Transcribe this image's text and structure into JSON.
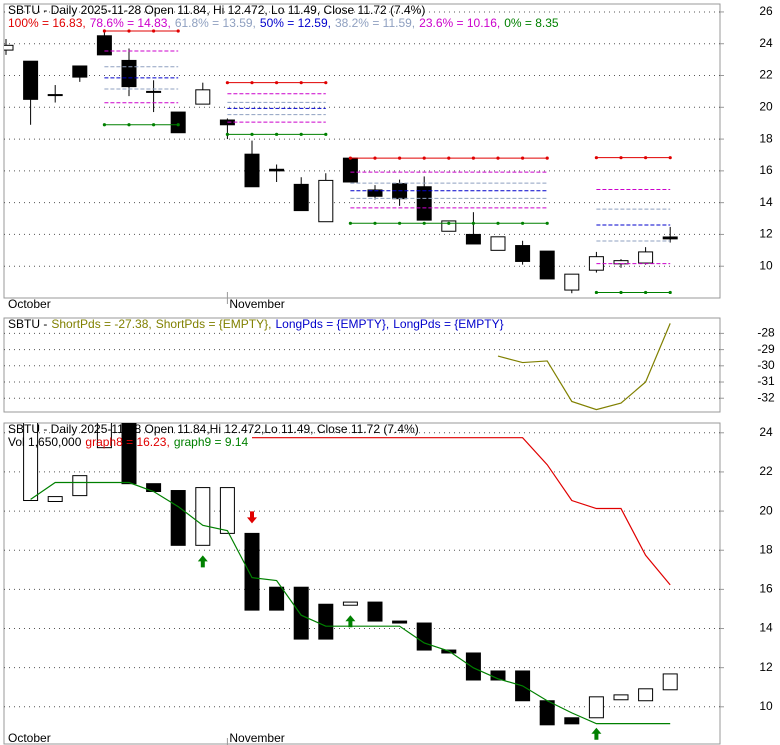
{
  "chart_data": [
    {
      "type": "candlestick",
      "title_lines": [
        [
          {
            "text": "SBTU - Daily 2025-11-28 Open 11.84, Hi 12.472, Lo 11.49, Close 11.72 (7.4%)",
            "color": "#000000"
          }
        ],
        [
          {
            "text": "100% = 16.83,",
            "color": "#e00000"
          },
          {
            "text": "78.6% = 14.83,",
            "color": "#cc00cc"
          },
          {
            "text": "61.8% = 13.59,",
            "color": "#8fa0c0"
          },
          {
            "text": "50% = 12.59,",
            "color": "#0000cc"
          },
          {
            "text": "38.2% = 11.59,",
            "color": "#8fa0c0"
          },
          {
            "text": "23.6% = 10.16,",
            "color": "#cc00cc"
          },
          {
            "text": "0% = 8.35",
            "color": "#008000"
          }
        ]
      ],
      "categories": [
        "October",
        null,
        null,
        null,
        null,
        null,
        null,
        null,
        null,
        "November",
        null,
        null,
        null,
        null,
        null,
        null,
        null,
        null,
        null,
        null,
        null,
        null,
        null,
        null,
        null,
        null,
        null,
        null
      ],
      "open": [
        23.6,
        22.9,
        20.8,
        22.6,
        24.5,
        22.95,
        21.0,
        19.7,
        20.2,
        19.2,
        17.05,
        16.1,
        15.15,
        12.8,
        16.8,
        14.8,
        15.2,
        15.0,
        12.2,
        12.0,
        11.0,
        11.3,
        10.95,
        8.5,
        9.75,
        10.15,
        10.2,
        11.84
      ],
      "high": [
        24.3,
        22.9,
        21.4,
        22.6,
        24.9,
        23.7,
        21.7,
        19.7,
        21.55,
        19.3,
        17.9,
        16.4,
        15.6,
        15.85,
        16.8,
        15.1,
        15.45,
        15.65,
        12.85,
        13.4,
        11.85,
        11.6,
        10.95,
        9.5,
        10.9,
        10.45,
        11.2,
        12.472
      ],
      "low": [
        23.3,
        18.9,
        20.3,
        21.6,
        23.3,
        20.7,
        19.7,
        18.4,
        20.2,
        18.0,
        15.0,
        15.3,
        13.5,
        12.8,
        15.3,
        14.2,
        13.8,
        12.9,
        12.2,
        11.4,
        11.0,
        10.1,
        9.2,
        8.3,
        9.6,
        9.9,
        10.1,
        11.49
      ],
      "close": [
        23.9,
        20.5,
        20.8,
        21.9,
        23.3,
        21.3,
        20.95,
        18.4,
        21.1,
        18.9,
        15.0,
        16.0,
        13.5,
        15.4,
        15.3,
        14.4,
        14.25,
        12.9,
        12.85,
        11.4,
        11.85,
        10.3,
        9.2,
        9.5,
        10.6,
        10.35,
        10.9,
        11.72
      ],
      "fib_colors": [
        "#e00000",
        "#cc00cc",
        "#8fa0c0",
        "#0000cc",
        "#8fa0c0",
        "#cc00cc",
        "#008000"
      ],
      "fib_groups": [
        {
          "start": 4,
          "end": 7,
          "levels": [
            24.8,
            23.54,
            22.55,
            21.85,
            21.15,
            20.29,
            18.9
          ]
        },
        {
          "start": 9,
          "end": 13,
          "levels": [
            21.55,
            20.85,
            20.31,
            19.93,
            19.54,
            19.07,
            18.3
          ]
        },
        {
          "start": 14,
          "end": 22,
          "levels": [
            16.8,
            15.92,
            15.23,
            14.75,
            14.27,
            13.67,
            12.7
          ]
        },
        {
          "start": 24,
          "end": 27,
          "levels": [
            16.83,
            14.83,
            13.59,
            12.59,
            11.59,
            10.16,
            8.35
          ]
        }
      ],
      "ylim": [
        8,
        26.5
      ],
      "yticks": [
        10,
        12,
        14,
        16,
        18,
        20,
        22,
        24,
        26
      ],
      "grid": true
    },
    {
      "type": "line",
      "title_lines": [
        [
          {
            "text": "SBTU -",
            "color": "#000000"
          },
          {
            "text": "ShortPds = -27.38,",
            "color": "#808000"
          },
          {
            "text": "ShortPds = {EMPTY},",
            "color": "#808000"
          },
          {
            "text": "LongPds = {EMPTY},",
            "color": "#0000cc"
          },
          {
            "text": "LongPds = {EMPTY}",
            "color": "#0000cc"
          }
        ]
      ],
      "color": "#808000",
      "values": [
        null,
        null,
        null,
        null,
        null,
        null,
        null,
        null,
        null,
        null,
        null,
        null,
        null,
        null,
        null,
        null,
        null,
        null,
        null,
        null,
        -29.4,
        -29.8,
        -29.7,
        -32.2,
        -32.7,
        -32.3,
        -31.0,
        -27.38
      ],
      "ylim": [
        -32.85,
        -27.05
      ],
      "yticks": [
        -32,
        -31,
        -30,
        -29,
        -28
      ],
      "grid": true
    },
    {
      "type": "candlestick",
      "title_lines": [
        [
          {
            "text": "SBTU - Daily 2025-11-28 Open 11.84,Hi 12.472,Lo 11.49, Close 11.72 (7.4%)",
            "color": "#000000"
          }
        ],
        [
          {
            "text": "Vol 1,650,000",
            "color": "#000000"
          },
          {
            "text": "graph8 = 16.23,",
            "color": "#e00000"
          },
          {
            "text": "graph9 = 9.14",
            "color": "#008000"
          }
        ]
      ],
      "categories": [
        "October",
        null,
        null,
        null,
        null,
        null,
        null,
        null,
        null,
        "November",
        null,
        null,
        null,
        null,
        null,
        null,
        null,
        null,
        null,
        null,
        null,
        null,
        null,
        null,
        null,
        null,
        null,
        null
      ],
      "open": [
        null,
        20.54,
        20.49,
        20.79,
        23.24,
        24.8,
        21.4,
        21.05,
        18.25,
        18.86,
        18.86,
        16.11,
        16.11,
        15.24,
        15.19,
        15.35,
        14.38,
        14.28,
        12.9,
        12.75,
        11.83,
        11.83,
        10.31,
        9.44,
        9.44,
        10.36,
        10.31,
        10.87
      ],
      "close": [
        null,
        24.8,
        20.74,
        21.81,
        24.8,
        21.4,
        21.0,
        18.25,
        21.2,
        21.2,
        14.94,
        14.94,
        13.46,
        13.46,
        15.35,
        14.38,
        14.28,
        12.9,
        12.75,
        11.37,
        11.37,
        10.31,
        9.08,
        9.13,
        10.51,
        10.61,
        10.92,
        11.68
      ],
      "series": [
        {
          "color": "#e00000",
          "values": [
            null,
            null,
            null,
            null,
            null,
            null,
            null,
            null,
            null,
            null,
            23.75,
            23.75,
            23.75,
            23.75,
            23.75,
            23.75,
            23.75,
            23.75,
            23.75,
            23.75,
            23.75,
            23.75,
            22.37,
            20.54,
            20.13,
            20.13,
            17.74,
            16.23
          ]
        },
        {
          "color": "#008000",
          "values": [
            null,
            20.6,
            21.46,
            21.46,
            21.46,
            21.46,
            21.0,
            20.23,
            19.27,
            19.0,
            16.6,
            16.45,
            14.68,
            14.12,
            14.12,
            14.12,
            14.12,
            13.26,
            12.85,
            11.99,
            11.43,
            11.07,
            10.31,
            9.69,
            9.14,
            9.14,
            9.14,
            9.14
          ]
        }
      ],
      "up_arrows": [
        8,
        14,
        24
      ],
      "down_arrows": [
        10
      ],
      "ylim": [
        8.1,
        24.5
      ],
      "yticks": [
        10,
        12,
        14,
        16,
        18,
        20,
        22,
        24
      ],
      "grid": true
    }
  ]
}
